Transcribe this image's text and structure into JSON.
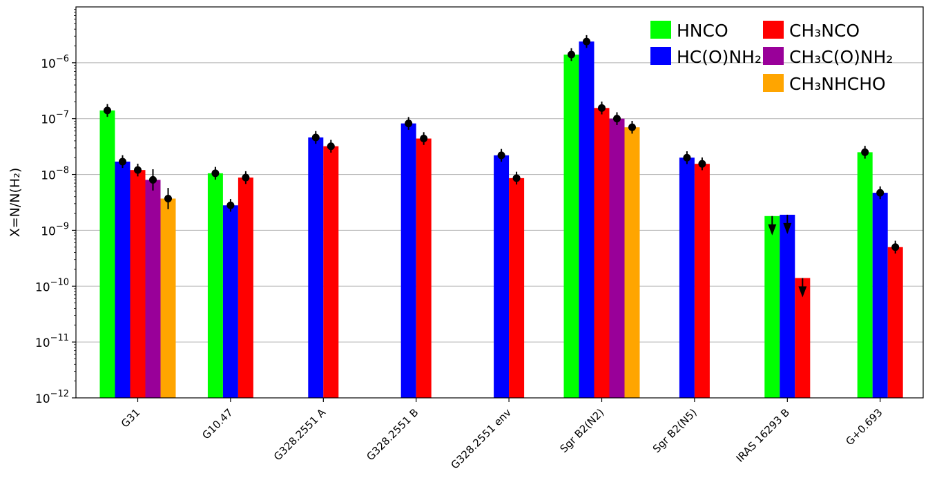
{
  "chart_data": {
    "type": "bar",
    "yscale": "log",
    "ylim": [
      1e-12,
      1e-05
    ],
    "ylabel": "X=N/N(H₂)",
    "grid": "y-major",
    "legend_position": "top-right",
    "categories": [
      "G31",
      "G10.47",
      "G328.2551 A",
      "G328.2551 B",
      "G328.2551 env",
      "Sgr B2(N2)",
      "Sgr B2(N5)",
      "IRAS 16293 B",
      "G+0.693"
    ],
    "series": [
      {
        "name": "HNCO",
        "color": "#00ff00",
        "values": [
          1.4e-07,
          1.05e-08,
          null,
          null,
          null,
          1.4e-06,
          null,
          1.8e-09,
          2.5e-08
        ],
        "upper_limit": [
          false,
          false,
          false,
          false,
          false,
          false,
          false,
          true,
          false
        ]
      },
      {
        "name": "HC(O)NH₂",
        "color": "#0000ff",
        "values": [
          1.7e-08,
          2.8e-09,
          4.6e-08,
          8.2e-08,
          2.2e-08,
          2.4e-06,
          2e-08,
          1.9e-09,
          4.7e-09
        ],
        "upper_limit": [
          false,
          false,
          false,
          false,
          false,
          false,
          false,
          true,
          false
        ]
      },
      {
        "name": "CH₃NCO",
        "color": "#ff0000",
        "values": [
          1.2e-08,
          8.8e-09,
          3.2e-08,
          4.4e-08,
          8.6e-09,
          1.55e-07,
          1.55e-08,
          1.4e-10,
          5e-10
        ],
        "upper_limit": [
          false,
          false,
          false,
          false,
          false,
          false,
          false,
          true,
          false
        ]
      },
      {
        "name": "CH₃C(O)NH₂",
        "color": "#990099",
        "values": [
          8e-09,
          null,
          null,
          null,
          null,
          1e-07,
          null,
          null,
          null
        ],
        "upper_limit": [
          false,
          false,
          false,
          false,
          false,
          false,
          false,
          false,
          false
        ]
      },
      {
        "name": "CH₃NHCHO",
        "color": "#ffa500",
        "values": [
          3.7e-09,
          null,
          null,
          null,
          null,
          7e-08,
          null,
          null,
          null
        ],
        "upper_limit": [
          false,
          false,
          false,
          false,
          false,
          false,
          false,
          false,
          false
        ]
      }
    ],
    "y_ticks": [
      {
        "value": 1e-12,
        "base": "10",
        "exp": "−12"
      },
      {
        "value": 1e-11,
        "base": "10",
        "exp": "−11"
      },
      {
        "value": 1e-10,
        "base": "10",
        "exp": "−10"
      },
      {
        "value": 1e-09,
        "base": "10",
        "exp": "−9"
      },
      {
        "value": 1e-08,
        "base": "10",
        "exp": "−8"
      },
      {
        "value": 1e-07,
        "base": "10",
        "exp": "−7"
      },
      {
        "value": 1e-06,
        "base": "10",
        "exp": "−6"
      }
    ]
  }
}
